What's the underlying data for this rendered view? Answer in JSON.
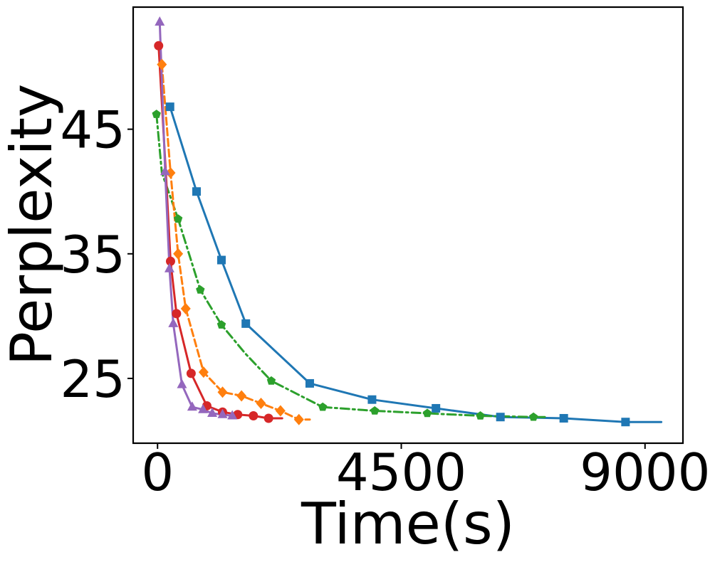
{
  "chart_data": {
    "type": "line",
    "xlabel": "Time(s)",
    "ylabel": "Perplexity",
    "xlim": [
      -450,
      9700
    ],
    "ylim": [
      19.8,
      54.8
    ],
    "xticks": [
      {
        "value": 0,
        "label": "0"
      },
      {
        "value": 4500,
        "label": "4500"
      },
      {
        "value": 9000,
        "label": "9000"
      }
    ],
    "yticks": [
      {
        "value": 25,
        "label": "25"
      },
      {
        "value": 35,
        "label": "35"
      },
      {
        "value": 45,
        "label": "45"
      }
    ],
    "grid": false,
    "legend": "none",
    "series": [
      {
        "color": "#1f77b4",
        "marker": "square",
        "dash": "solid",
        "x": [
          230,
          720,
          1180,
          1630,
          2810,
          3960,
          5140,
          6330,
          7500,
          8640,
          9300
        ],
        "y": [
          46.8,
          40.0,
          34.5,
          29.4,
          24.6,
          23.3,
          22.6,
          21.9,
          21.8,
          21.5,
          21.5
        ],
        "markers": [
          1,
          1,
          1,
          1,
          1,
          1,
          1,
          1,
          1,
          1,
          0
        ]
      },
      {
        "color": "#2ca02c",
        "marker": "pentagon",
        "dash": "dashdot",
        "x": [
          -20,
          80,
          380,
          790,
          1180,
          1620,
          2100,
          3050,
          4010,
          4980,
          5960,
          6940,
          7200
        ],
        "y": [
          46.2,
          41.5,
          37.8,
          32.1,
          29.3,
          27.0,
          24.8,
          22.7,
          22.4,
          22.2,
          22.0,
          21.9,
          21.9
        ],
        "markers": [
          1,
          0,
          1,
          1,
          1,
          0,
          1,
          1,
          1,
          1,
          1,
          1,
          0
        ]
      },
      {
        "color": "#ff7f0e",
        "marker": "diamond",
        "dash": "dashed",
        "x": [
          80,
          240,
          380,
          520,
          850,
          1200,
          1550,
          1910,
          2270,
          2610,
          2810
        ],
        "y": [
          50.2,
          41.5,
          35.0,
          30.6,
          25.5,
          23.9,
          23.6,
          23.0,
          22.4,
          21.7,
          21.7
        ],
        "markers": [
          1,
          1,
          1,
          1,
          1,
          1,
          1,
          1,
          1,
          1,
          0
        ]
      },
      {
        "color": "#d62728",
        "marker": "circle",
        "dash": "solid",
        "x": [
          20,
          150,
          240,
          350,
          620,
          910,
          1200,
          1480,
          1770,
          2050,
          2300
        ],
        "y": [
          51.7,
          41.8,
          34.4,
          30.2,
          25.4,
          22.8,
          22.3,
          22.1,
          22.0,
          21.8,
          21.8
        ],
        "markers": [
          1,
          0,
          1,
          1,
          1,
          1,
          1,
          1,
          1,
          1,
          0
        ]
      },
      {
        "color": "#9467bd",
        "marker": "triangle",
        "dash": "solid",
        "x": [
          40,
          140,
          220,
          290,
          450,
          640,
          840,
          1010,
          1200,
          1380
        ],
        "y": [
          53.6,
          41.6,
          33.8,
          29.4,
          24.5,
          22.7,
          22.5,
          22.2,
          22.1,
          22.0
        ],
        "markers": [
          1,
          1,
          1,
          1,
          1,
          1,
          1,
          1,
          1,
          1
        ]
      }
    ]
  }
}
